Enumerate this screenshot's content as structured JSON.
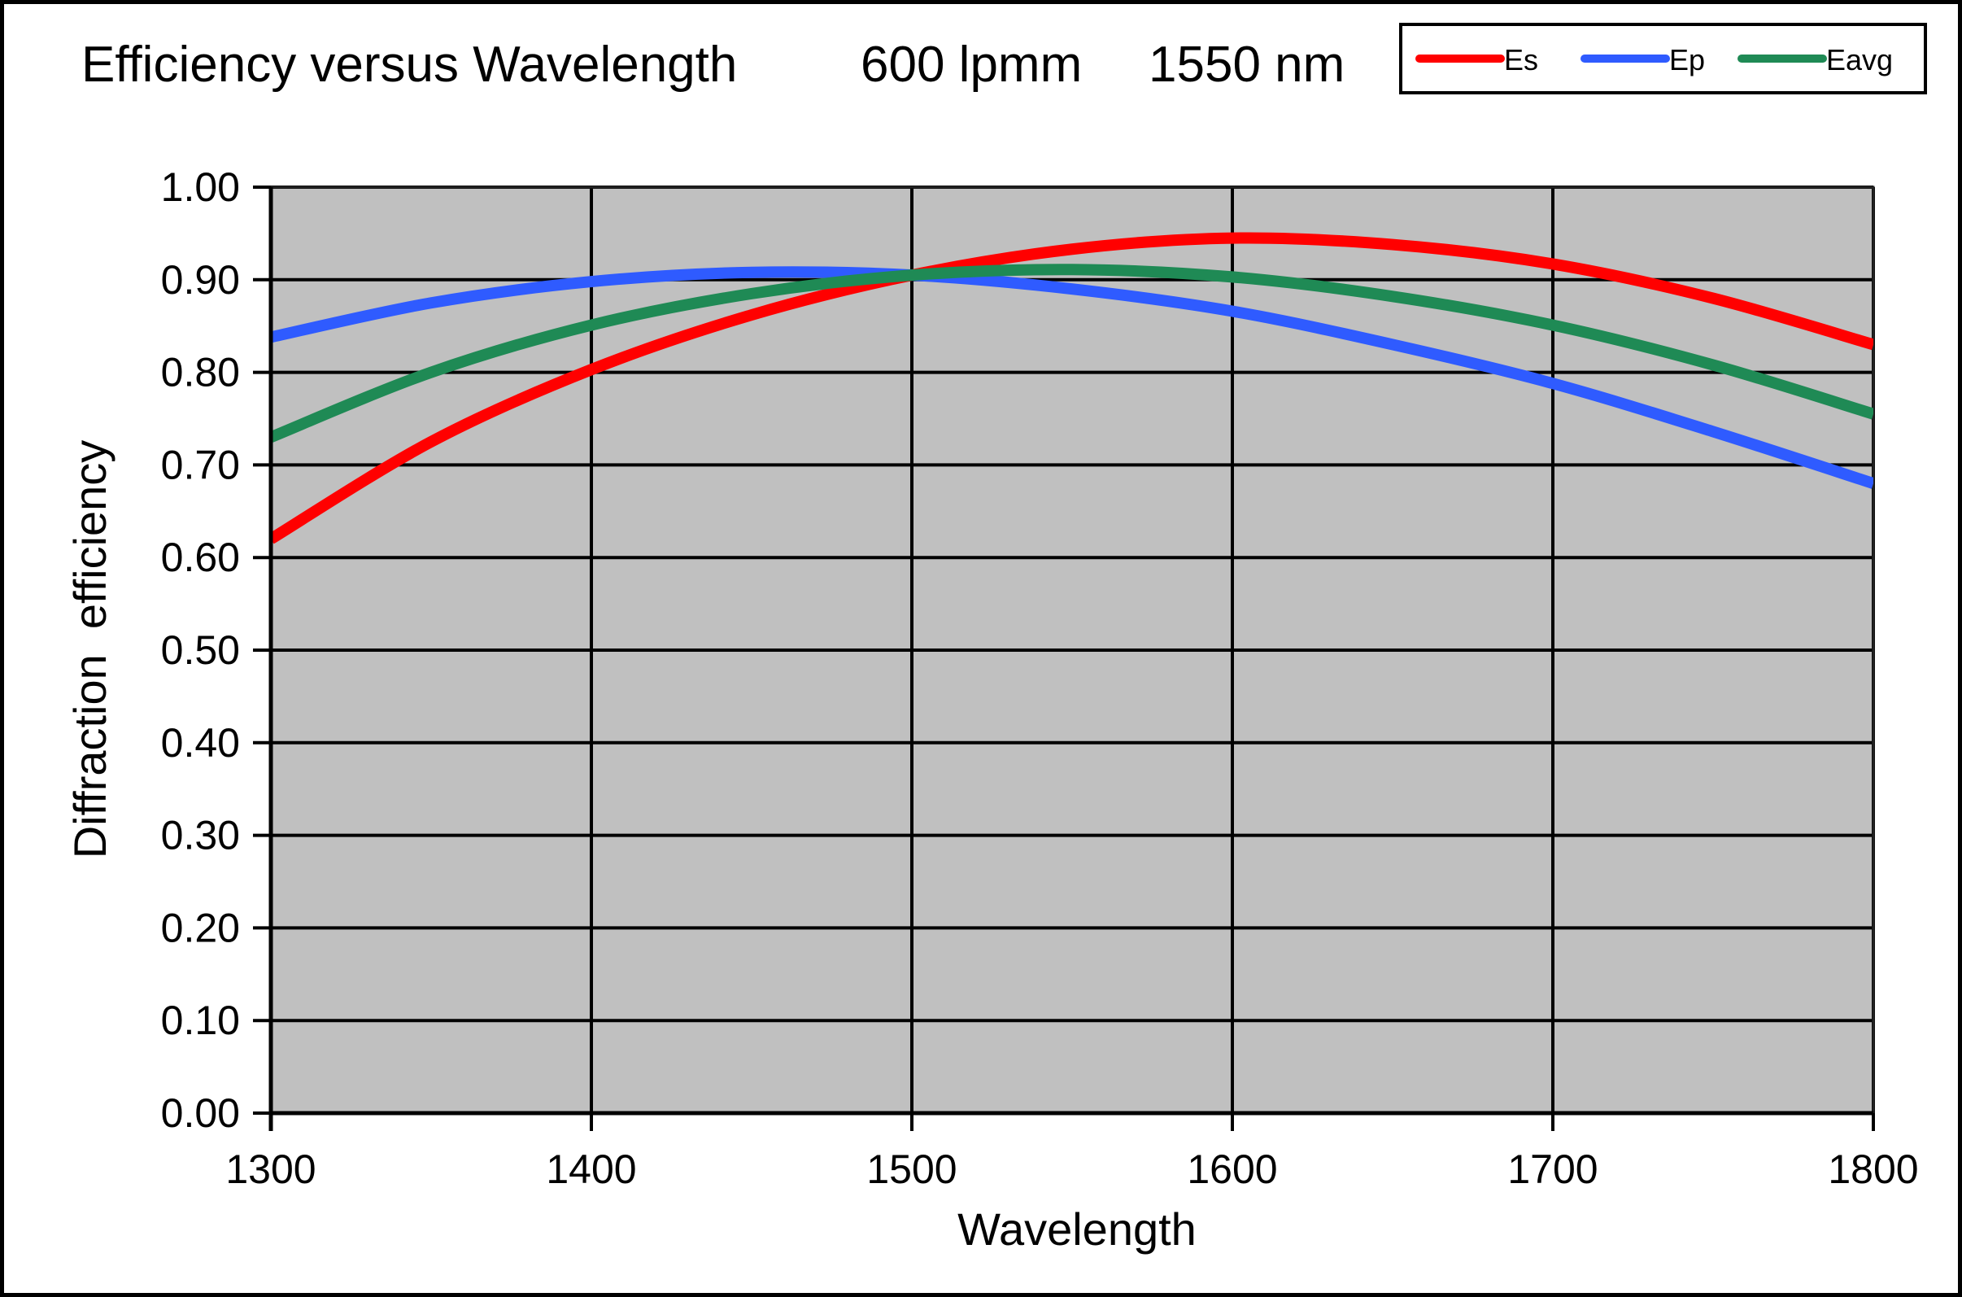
{
  "chart_data": {
    "type": "line",
    "title": "Efficiency versus Wavelength",
    "subtitle_parts": [
      "600 lpmm",
      "1550 nm"
    ],
    "xlabel": "Wavelength",
    "ylabel": "Diffraction  efficiency",
    "xlim": [
      1300,
      1800
    ],
    "ylim": [
      0,
      1
    ],
    "x_ticks": [
      1300,
      1400,
      1500,
      1600,
      1700,
      1800
    ],
    "x_tick_labels": [
      "1300",
      "1400",
      "1500",
      "1600",
      "1700",
      "1800"
    ],
    "y_ticks": [
      0,
      0.1,
      0.2,
      0.3,
      0.4,
      0.5,
      0.6,
      0.7,
      0.8,
      0.9,
      1.0
    ],
    "y_tick_labels": [
      "0.00",
      "0.10",
      "0.20",
      "0.30",
      "0.40",
      "0.50",
      "0.60",
      "0.70",
      "0.80",
      "0.90",
      "1.00"
    ],
    "grid": true,
    "plot_background": "#c0c0c0",
    "legend_position": "top-right",
    "x": [
      1300,
      1350,
      1400,
      1450,
      1500,
      1550,
      1600,
      1650,
      1700,
      1750,
      1800
    ],
    "series": [
      {
        "name": "Es",
        "color": "#ff0000",
        "values": [
          0.62,
          0.725,
          0.803,
          0.862,
          0.905,
          0.933,
          0.945,
          0.938,
          0.917,
          0.88,
          0.83
        ]
      },
      {
        "name": "Ep",
        "color": "#2f5bff",
        "values": [
          0.838,
          0.875,
          0.898,
          0.908,
          0.905,
          0.89,
          0.866,
          0.83,
          0.788,
          0.736,
          0.68
        ]
      },
      {
        "name": "Eavg",
        "color": "#1f8a55",
        "values": [
          0.73,
          0.8,
          0.851,
          0.885,
          0.905,
          0.911,
          0.903,
          0.882,
          0.851,
          0.808,
          0.755
        ]
      }
    ]
  }
}
